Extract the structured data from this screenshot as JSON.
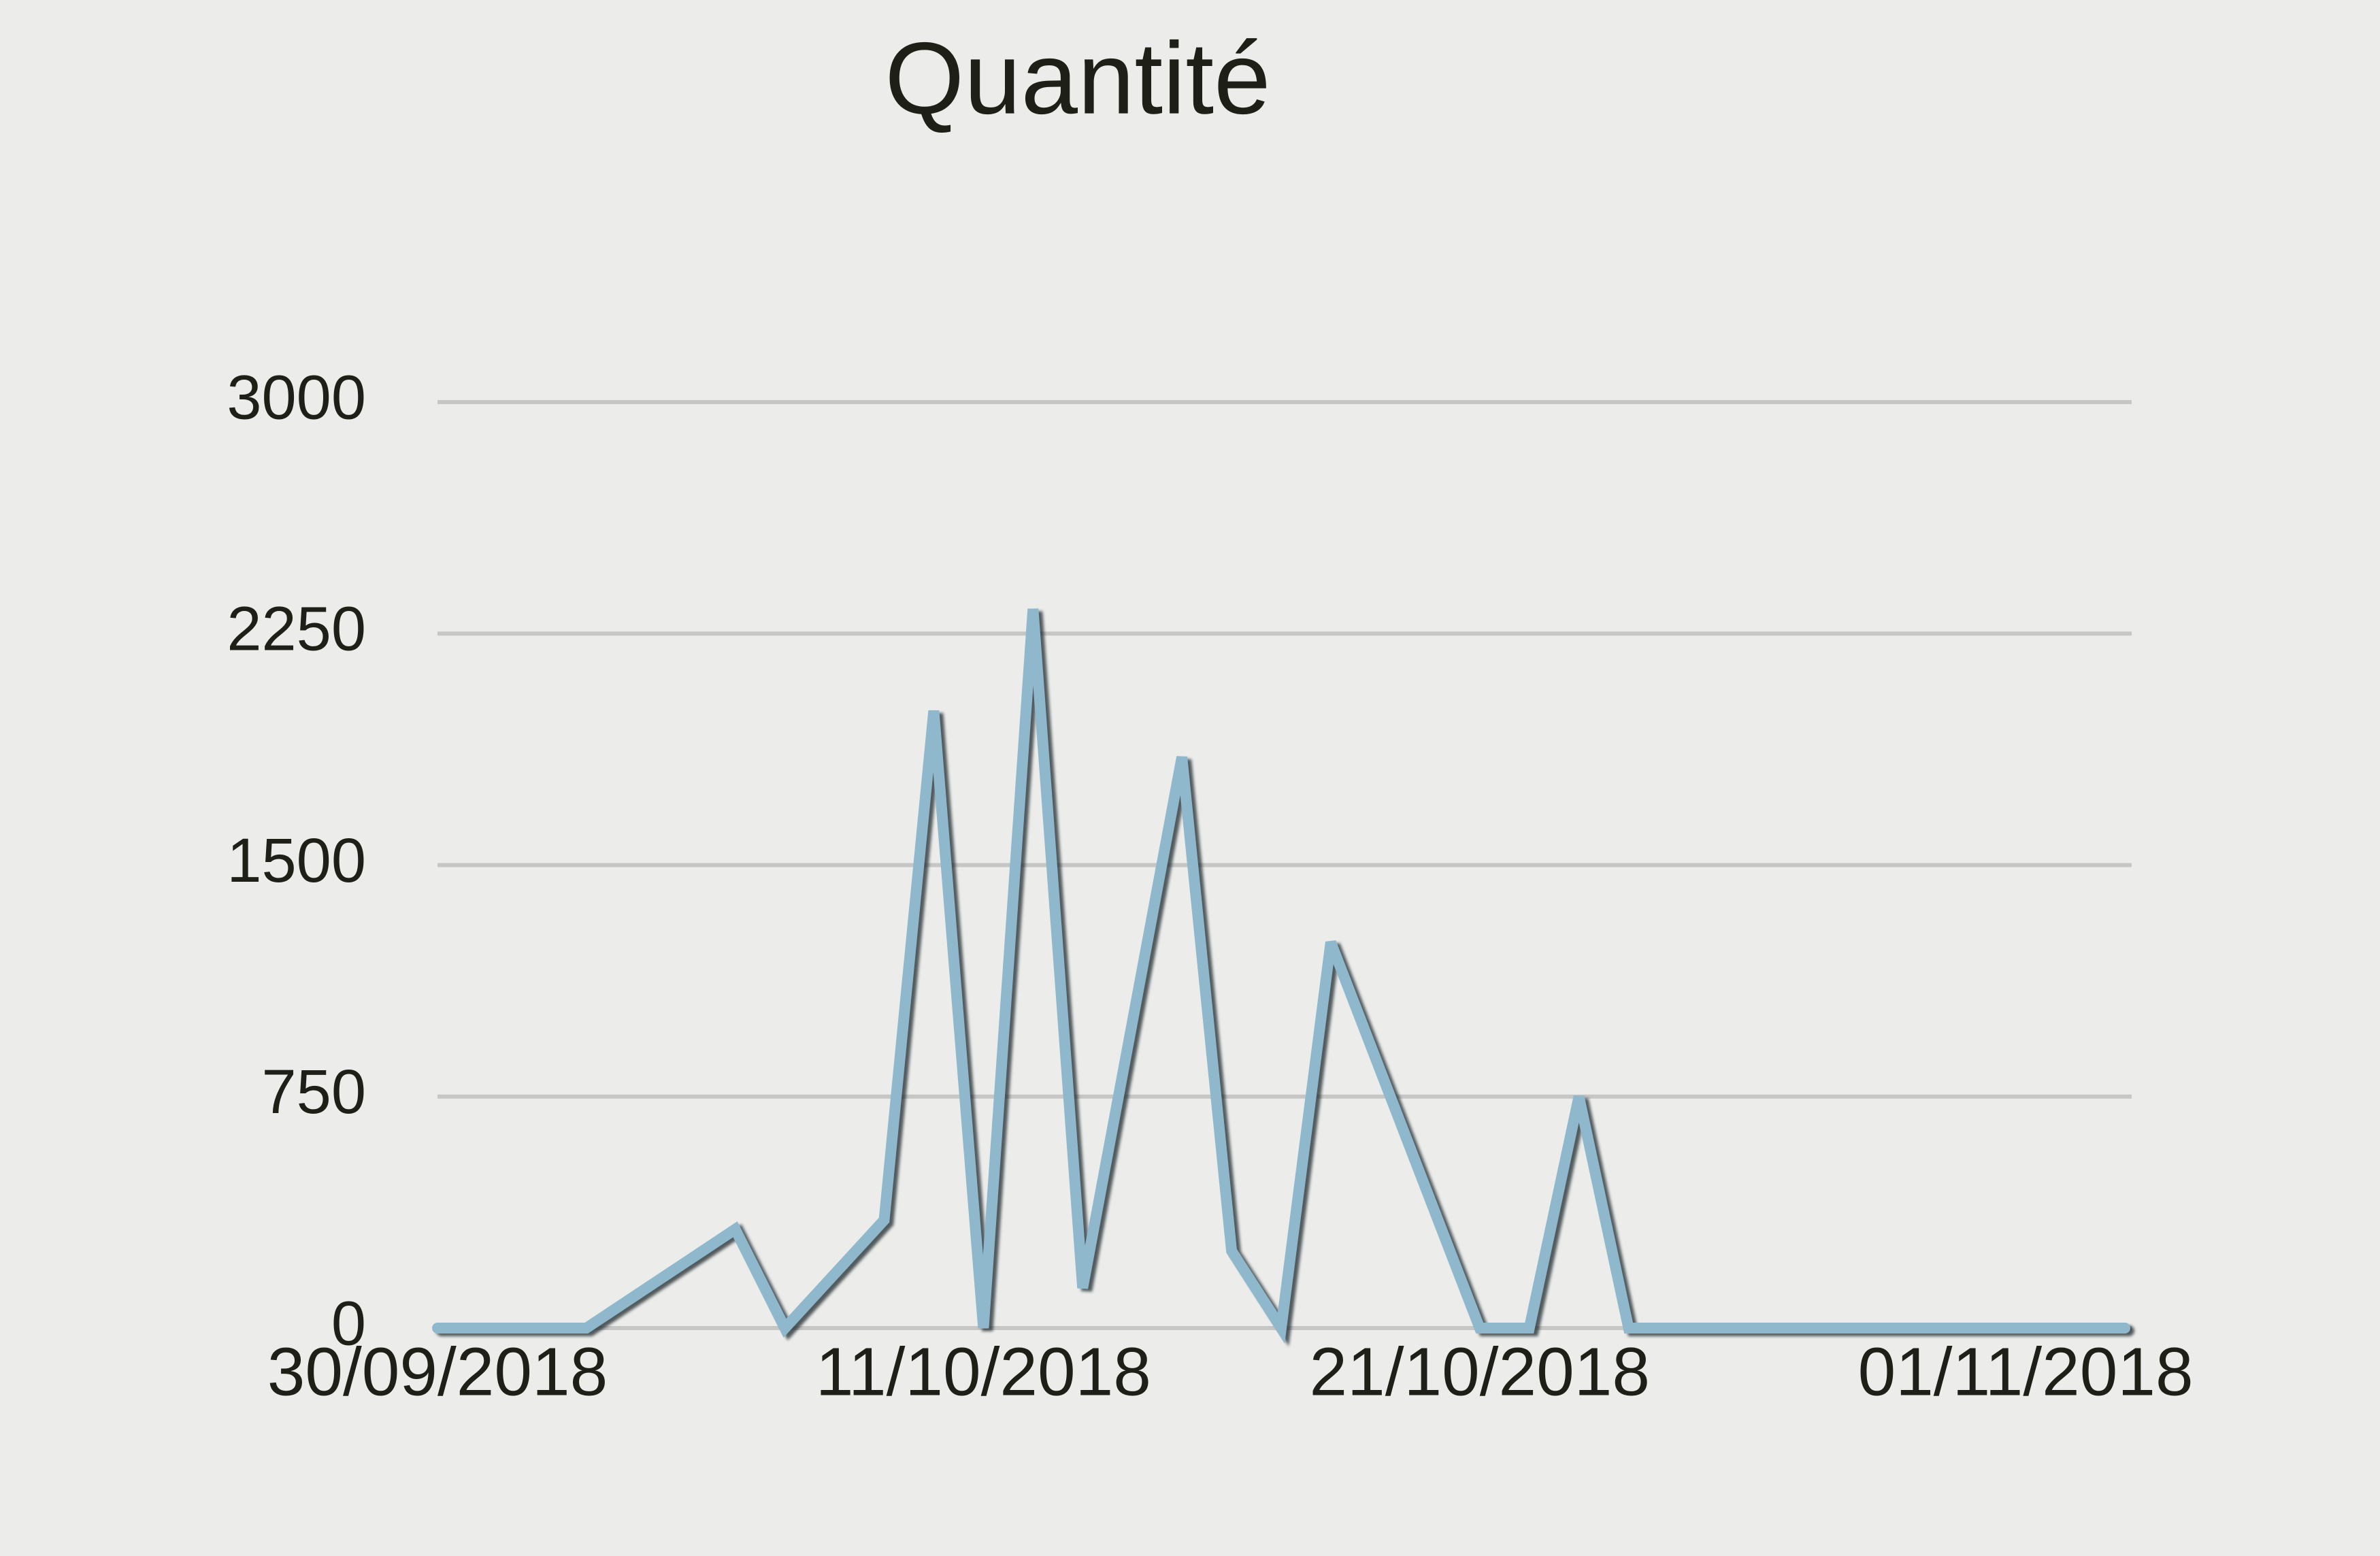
{
  "chart_data": {
    "type": "line",
    "title": "Quantité",
    "x": [
      "30/09/2018",
      "03/10/2018",
      "06/10/2018",
      "07/10/2018",
      "09/10/2018",
      "10/10/2018",
      "11/10/2018",
      "12/10/2018",
      "13/10/2018",
      "15/10/2018",
      "16/10/2018",
      "17/10/2018",
      "18/10/2018",
      "21/10/2018",
      "22/10/2018",
      "23/10/2018",
      "24/10/2018",
      "03/11/2018"
    ],
    "values": [
      0,
      0,
      320,
      0,
      350,
      2000,
      0,
      2330,
      130,
      1850,
      250,
      0,
      1250,
      0,
      0,
      750,
      0,
      0
    ],
    "color": "#8fb8cc",
    "xlim": [
      "30/09/2018",
      "03/11/2018"
    ],
    "xticks": [
      "30/09/2018",
      "11/10/2018",
      "21/10/2018",
      "01/11/2018"
    ],
    "ylim": [
      0,
      3000
    ],
    "yticks": [
      0,
      750,
      1500,
      2250,
      3000
    ],
    "grid": true
  }
}
